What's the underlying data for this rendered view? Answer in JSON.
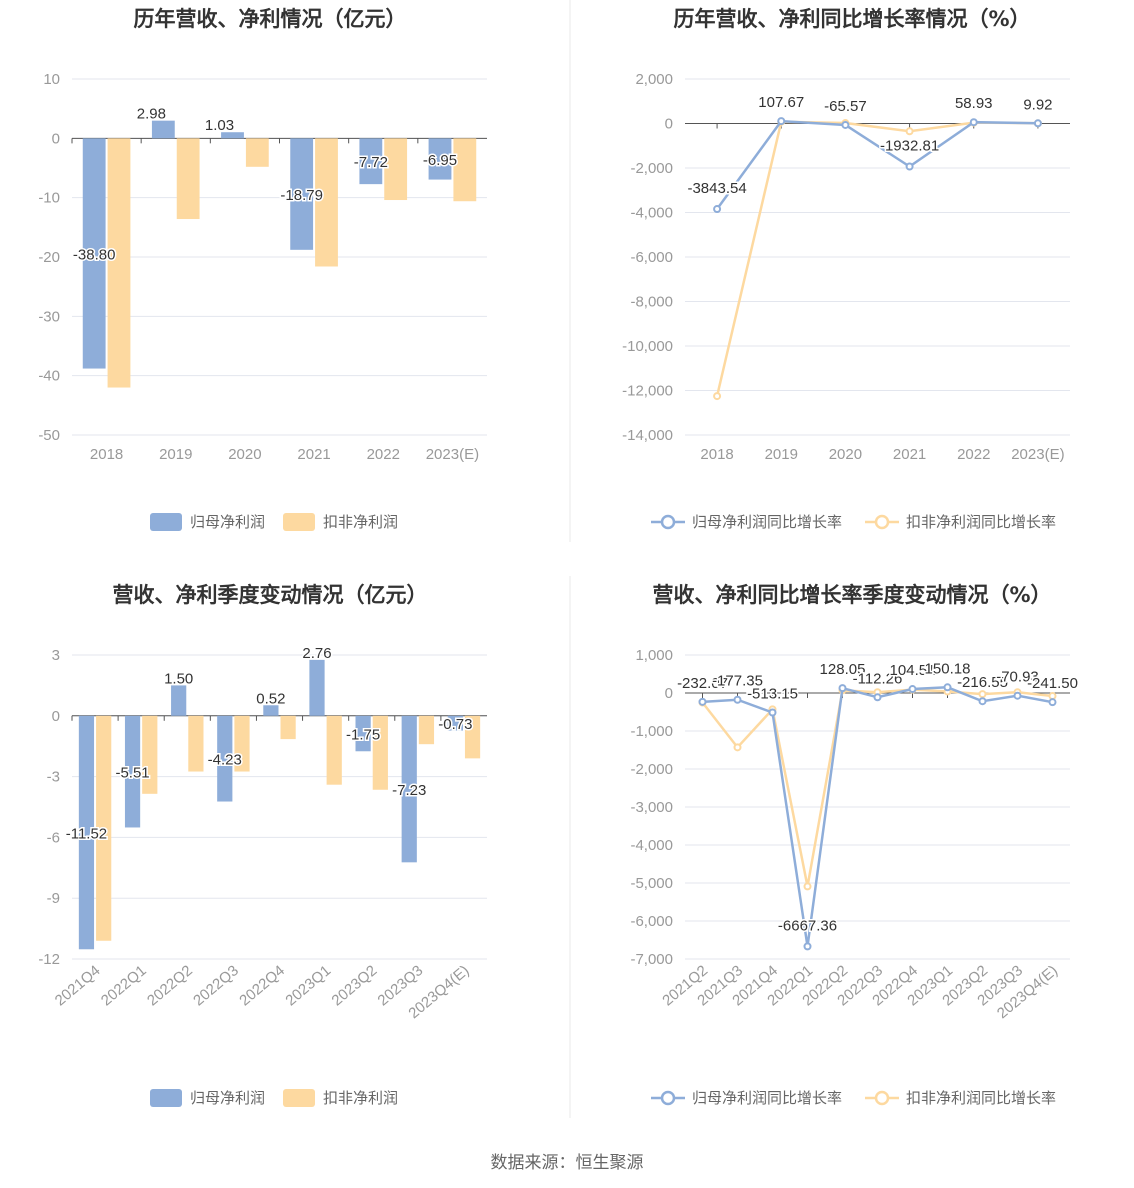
{
  "source_text": "数据来源：恒生聚源",
  "colors": {
    "series1": "#8eadd9",
    "series2": "#fdd9a0",
    "grid": "#e3e6ee",
    "axis": "#555"
  },
  "chart_data": [
    {
      "type": "bar",
      "title": "历年营收、净利情况（亿元）",
      "categories": [
        "2018",
        "2019",
        "2020",
        "2021",
        "2022",
        "2023(E)"
      ],
      "ylim": [
        -50,
        10
      ],
      "yticks": [
        10,
        0,
        -10,
        -20,
        -30,
        -40,
        -50
      ],
      "ytick_labels": [
        "10",
        "0",
        "-10",
        "-20",
        "-30",
        "-40",
        "-50"
      ],
      "legend": "bottom",
      "series": [
        {
          "name": "归母净利润",
          "values": [
            -38.8,
            2.98,
            1.03,
            -18.79,
            -7.72,
            -6.95
          ],
          "labels": [
            "-38.80",
            "2.98",
            "1.03",
            "-18.79",
            "-7.72",
            "-6.95"
          ],
          "show_labels": true
        },
        {
          "name": "扣非净利润",
          "values": [
            -42.0,
            -13.6,
            -4.8,
            -21.6,
            -10.4,
            -10.6
          ],
          "show_labels": false
        }
      ]
    },
    {
      "type": "line",
      "title": "历年营收、净利同比增长率情况（%）",
      "categories": [
        "2018",
        "2019",
        "2020",
        "2021",
        "2022",
        "2023(E)"
      ],
      "ylim": [
        -14000,
        2000
      ],
      "yticks": [
        2000,
        0,
        -2000,
        -4000,
        -6000,
        -8000,
        -10000,
        -12000,
        -14000
      ],
      "ytick_labels": [
        "2,000",
        "0",
        "-2,000",
        "-4,000",
        "-6,000",
        "-8,000",
        "-10,000",
        "-12,000",
        "-14,000"
      ],
      "legend": "bottom",
      "series": [
        {
          "name": "归母净利润同比增长率",
          "values": [
            -3843.54,
            107.67,
            -65.57,
            -1932.81,
            58.93,
            9.92
          ],
          "labels": [
            "-3843.54",
            "107.67",
            "-65.57",
            "-1932.81",
            "58.93",
            "9.92"
          ],
          "show_labels": true
        },
        {
          "name": "扣非净利润同比增长率",
          "values": [
            -12250,
            80,
            20,
            -350,
            40,
            10
          ],
          "show_labels": false
        }
      ]
    },
    {
      "type": "bar",
      "title": "营收、净利季度变动情况（亿元）",
      "categories": [
        "2021Q4",
        "2022Q1",
        "2022Q2",
        "2022Q3",
        "2022Q4",
        "2023Q1",
        "2023Q2",
        "2023Q3",
        "2023Q4(E)"
      ],
      "ylim": [
        -12,
        3
      ],
      "yticks": [
        3,
        0,
        -3,
        -6,
        -9,
        -12
      ],
      "ytick_labels": [
        "3",
        "0",
        "-3",
        "-6",
        "-9",
        "-12"
      ],
      "legend": "bottom",
      "series": [
        {
          "name": "归母净利润",
          "values": [
            -11.52,
            -5.51,
            1.5,
            -4.23,
            0.52,
            2.76,
            -1.75,
            -7.23,
            -0.73
          ],
          "labels": [
            "-11.52",
            "-5.51",
            "1.50",
            "-4.23",
            "0.52",
            "2.76",
            "-1.75",
            "-7.23",
            "-0.73"
          ],
          "show_labels": true
        },
        {
          "name": "扣非净利润",
          "values": [
            -11.1,
            -3.85,
            -2.75,
            -2.75,
            -1.15,
            -3.4,
            -3.65,
            -1.4,
            -2.1
          ],
          "show_labels": false
        }
      ]
    },
    {
      "type": "line",
      "title": "营收、净利同比增长率季度变动情况（%）",
      "categories": [
        "2021Q2",
        "2021Q3",
        "2021Q4",
        "2022Q1",
        "2022Q2",
        "2022Q3",
        "2022Q4",
        "2023Q1",
        "2023Q2",
        "2023Q3",
        "2023Q4(E)"
      ],
      "ylim": [
        -7000,
        1000
      ],
      "yticks": [
        1000,
        0,
        -1000,
        -2000,
        -3000,
        -4000,
        -5000,
        -6000,
        -7000
      ],
      "ytick_labels": [
        "1,000",
        "0",
        "-1,000",
        "-2,000",
        "-3,000",
        "-4,000",
        "-5,000",
        "-6,000",
        "-7,000"
      ],
      "legend": "bottom",
      "series": [
        {
          "name": "归母净利润同比增长率",
          "values": [
            -232.07,
            -177.35,
            -513.15,
            -6667.36,
            128.05,
            -112.26,
            104.51,
            150.18,
            -216.55,
            -70.93,
            -241.5
          ],
          "labels": [
            "-232.07",
            "-177.35",
            "-513.15",
            "-6667.36",
            "128.05",
            "-112.26",
            "104.51",
            "150.18",
            "-216.55",
            "-70.93",
            "-241.50"
          ],
          "show_labels": true
        },
        {
          "name": "扣非净利润同比增长率",
          "values": [
            -250,
            -1430,
            -430,
            -5090,
            70,
            20,
            90,
            40,
            -30,
            20,
            -80
          ],
          "show_labels": false
        }
      ]
    }
  ]
}
